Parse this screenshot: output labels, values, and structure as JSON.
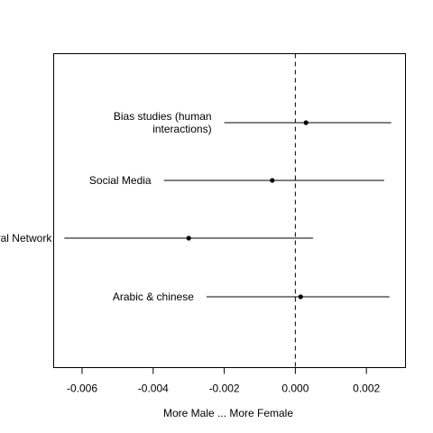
{
  "chart_data": {
    "type": "forest",
    "title": "",
    "xlabel": "More Male ... More Female",
    "ylabel": "",
    "xlim": [
      -0.0068,
      0.0031
    ],
    "x_ticks": [
      -0.006,
      -0.004,
      -0.002,
      0.0,
      0.002
    ],
    "x_tick_labels": [
      "-0.006",
      "-0.004",
      "-0.002",
      "0.000",
      "0.002"
    ],
    "reference_line": {
      "x": 0,
      "style": "dashed"
    },
    "grid": false,
    "rows": [
      {
        "label_lines": [
          "Bias studies (human",
          "interactions)"
        ],
        "estimate": 0.0003,
        "lower": -0.002,
        "upper": 0.0027
      },
      {
        "label_lines": [
          "Social Media"
        ],
        "estimate": -0.00065,
        "lower": -0.0037,
        "upper": 0.0025
      },
      {
        "label_lines": [
          "ral Network"
        ],
        "estimate": -0.003,
        "lower": -0.0065,
        "upper": 0.0005
      },
      {
        "label_lines": [
          "Arabic & chinese"
        ],
        "estimate": 0.00015,
        "lower": -0.0025,
        "upper": 0.00265
      }
    ]
  }
}
